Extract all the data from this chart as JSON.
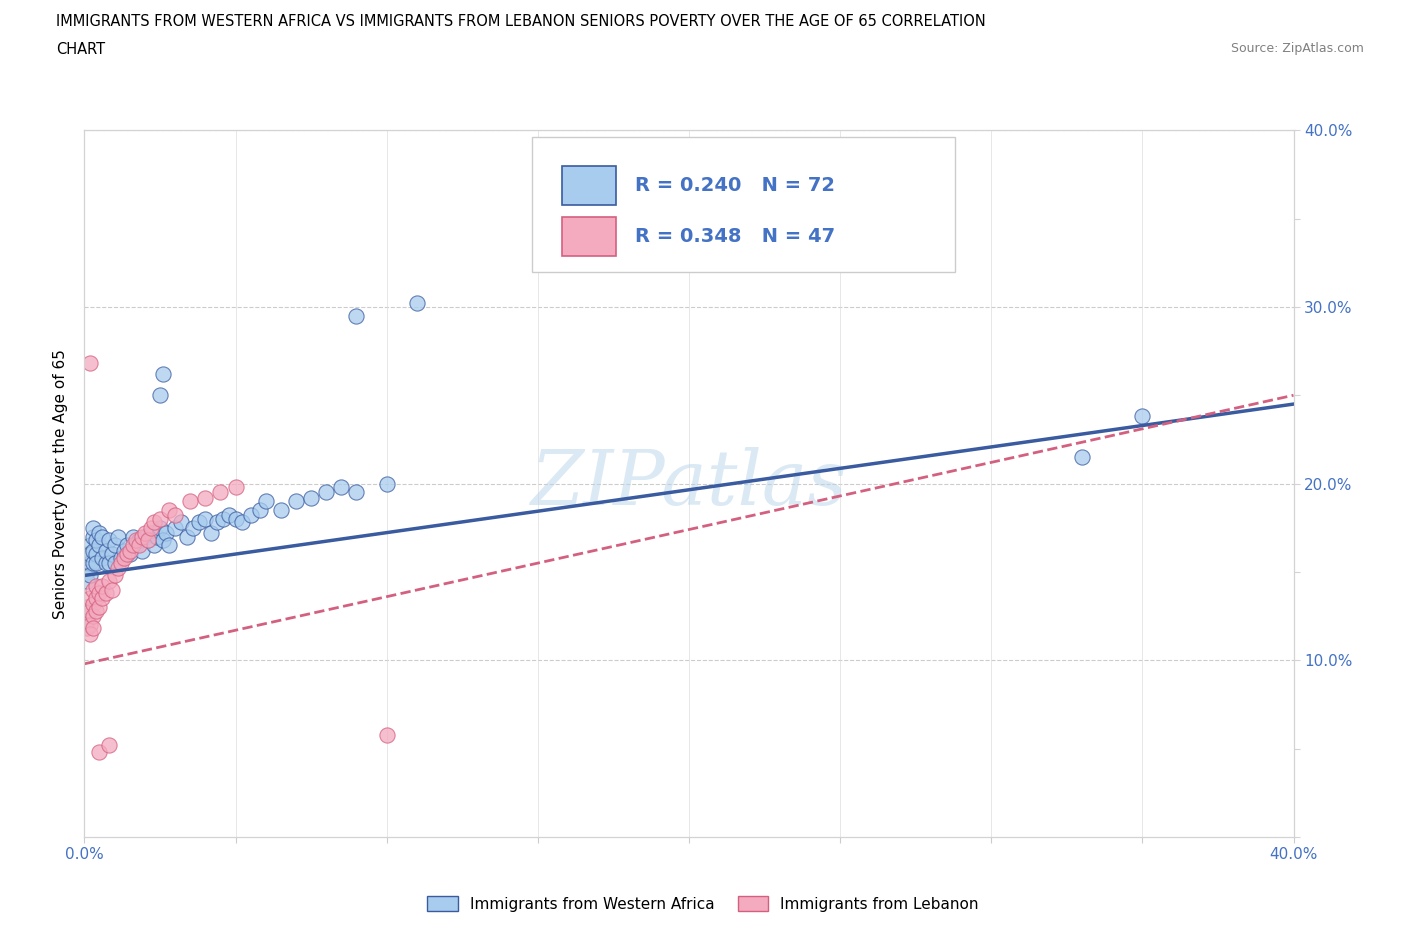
{
  "title_line1": "IMMIGRANTS FROM WESTERN AFRICA VS IMMIGRANTS FROM LEBANON SENIORS POVERTY OVER THE AGE OF 65 CORRELATION",
  "title_line2": "CHART",
  "source": "Source: ZipAtlas.com",
  "ylabel": "Seniors Poverty Over the Age of 65",
  "xlim": [
    0,
    0.4
  ],
  "ylim": [
    0,
    0.4
  ],
  "R_blue": 0.24,
  "N_blue": 72,
  "R_pink": 0.348,
  "N_pink": 47,
  "blue_color": "#A8CCEE",
  "pink_color": "#F4AABF",
  "blue_line_color": "#3A5BA0",
  "pink_line_color": "#D46080",
  "tick_color": "#4472C4",
  "watermark": "ZIPatlas",
  "legend_label_blue": "Immigrants from Western Africa",
  "legend_label_pink": "Immigrants from Lebanon",
  "blue_scatter": [
    [
      0.001,
      0.155
    ],
    [
      0.001,
      0.16
    ],
    [
      0.001,
      0.15
    ],
    [
      0.001,
      0.145
    ],
    [
      0.002,
      0.165
    ],
    [
      0.002,
      0.155
    ],
    [
      0.002,
      0.16
    ],
    [
      0.002,
      0.148
    ],
    [
      0.003,
      0.17
    ],
    [
      0.003,
      0.155
    ],
    [
      0.003,
      0.162
    ],
    [
      0.003,
      0.175
    ],
    [
      0.004,
      0.16
    ],
    [
      0.004,
      0.168
    ],
    [
      0.004,
      0.155
    ],
    [
      0.005,
      0.165
    ],
    [
      0.005,
      0.172
    ],
    [
      0.006,
      0.17
    ],
    [
      0.006,
      0.158
    ],
    [
      0.007,
      0.155
    ],
    [
      0.007,
      0.162
    ],
    [
      0.008,
      0.168
    ],
    [
      0.008,
      0.155
    ],
    [
      0.009,
      0.16
    ],
    [
      0.01,
      0.165
    ],
    [
      0.01,
      0.155
    ],
    [
      0.011,
      0.17
    ],
    [
      0.012,
      0.158
    ],
    [
      0.013,
      0.162
    ],
    [
      0.014,
      0.165
    ],
    [
      0.015,
      0.16
    ],
    [
      0.016,
      0.17
    ],
    [
      0.017,
      0.165
    ],
    [
      0.018,
      0.168
    ],
    [
      0.019,
      0.162
    ],
    [
      0.02,
      0.17
    ],
    [
      0.021,
      0.168
    ],
    [
      0.022,
      0.172
    ],
    [
      0.023,
      0.165
    ],
    [
      0.024,
      0.17
    ],
    [
      0.025,
      0.175
    ],
    [
      0.026,
      0.168
    ],
    [
      0.027,
      0.172
    ],
    [
      0.028,
      0.165
    ],
    [
      0.03,
      0.175
    ],
    [
      0.032,
      0.178
    ],
    [
      0.034,
      0.17
    ],
    [
      0.036,
      0.175
    ],
    [
      0.038,
      0.178
    ],
    [
      0.04,
      0.18
    ],
    [
      0.042,
      0.172
    ],
    [
      0.044,
      0.178
    ],
    [
      0.046,
      0.18
    ],
    [
      0.048,
      0.182
    ],
    [
      0.05,
      0.18
    ],
    [
      0.052,
      0.178
    ],
    [
      0.055,
      0.182
    ],
    [
      0.058,
      0.185
    ],
    [
      0.06,
      0.19
    ],
    [
      0.065,
      0.185
    ],
    [
      0.07,
      0.19
    ],
    [
      0.075,
      0.192
    ],
    [
      0.08,
      0.195
    ],
    [
      0.085,
      0.198
    ],
    [
      0.09,
      0.195
    ],
    [
      0.1,
      0.2
    ],
    [
      0.025,
      0.25
    ],
    [
      0.026,
      0.262
    ],
    [
      0.09,
      0.295
    ],
    [
      0.11,
      0.302
    ],
    [
      0.33,
      0.215
    ],
    [
      0.35,
      0.238
    ]
  ],
  "pink_scatter": [
    [
      0.001,
      0.125
    ],
    [
      0.001,
      0.118
    ],
    [
      0.001,
      0.13
    ],
    [
      0.001,
      0.122
    ],
    [
      0.002,
      0.128
    ],
    [
      0.002,
      0.135
    ],
    [
      0.002,
      0.12
    ],
    [
      0.002,
      0.115
    ],
    [
      0.003,
      0.14
    ],
    [
      0.003,
      0.132
    ],
    [
      0.003,
      0.125
    ],
    [
      0.003,
      0.118
    ],
    [
      0.004,
      0.135
    ],
    [
      0.004,
      0.128
    ],
    [
      0.004,
      0.142
    ],
    [
      0.005,
      0.13
    ],
    [
      0.005,
      0.138
    ],
    [
      0.006,
      0.135
    ],
    [
      0.006,
      0.142
    ],
    [
      0.007,
      0.138
    ],
    [
      0.008,
      0.145
    ],
    [
      0.009,
      0.14
    ],
    [
      0.01,
      0.148
    ],
    [
      0.011,
      0.152
    ],
    [
      0.012,
      0.155
    ],
    [
      0.013,
      0.158
    ],
    [
      0.014,
      0.16
    ],
    [
      0.015,
      0.162
    ],
    [
      0.016,
      0.165
    ],
    [
      0.017,
      0.168
    ],
    [
      0.018,
      0.165
    ],
    [
      0.019,
      0.17
    ],
    [
      0.02,
      0.172
    ],
    [
      0.021,
      0.168
    ],
    [
      0.022,
      0.175
    ],
    [
      0.023,
      0.178
    ],
    [
      0.025,
      0.18
    ],
    [
      0.028,
      0.185
    ],
    [
      0.03,
      0.182
    ],
    [
      0.035,
      0.19
    ],
    [
      0.04,
      0.192
    ],
    [
      0.045,
      0.195
    ],
    [
      0.05,
      0.198
    ],
    [
      0.002,
      0.268
    ],
    [
      0.005,
      0.048
    ],
    [
      0.008,
      0.052
    ],
    [
      0.1,
      0.058
    ]
  ]
}
